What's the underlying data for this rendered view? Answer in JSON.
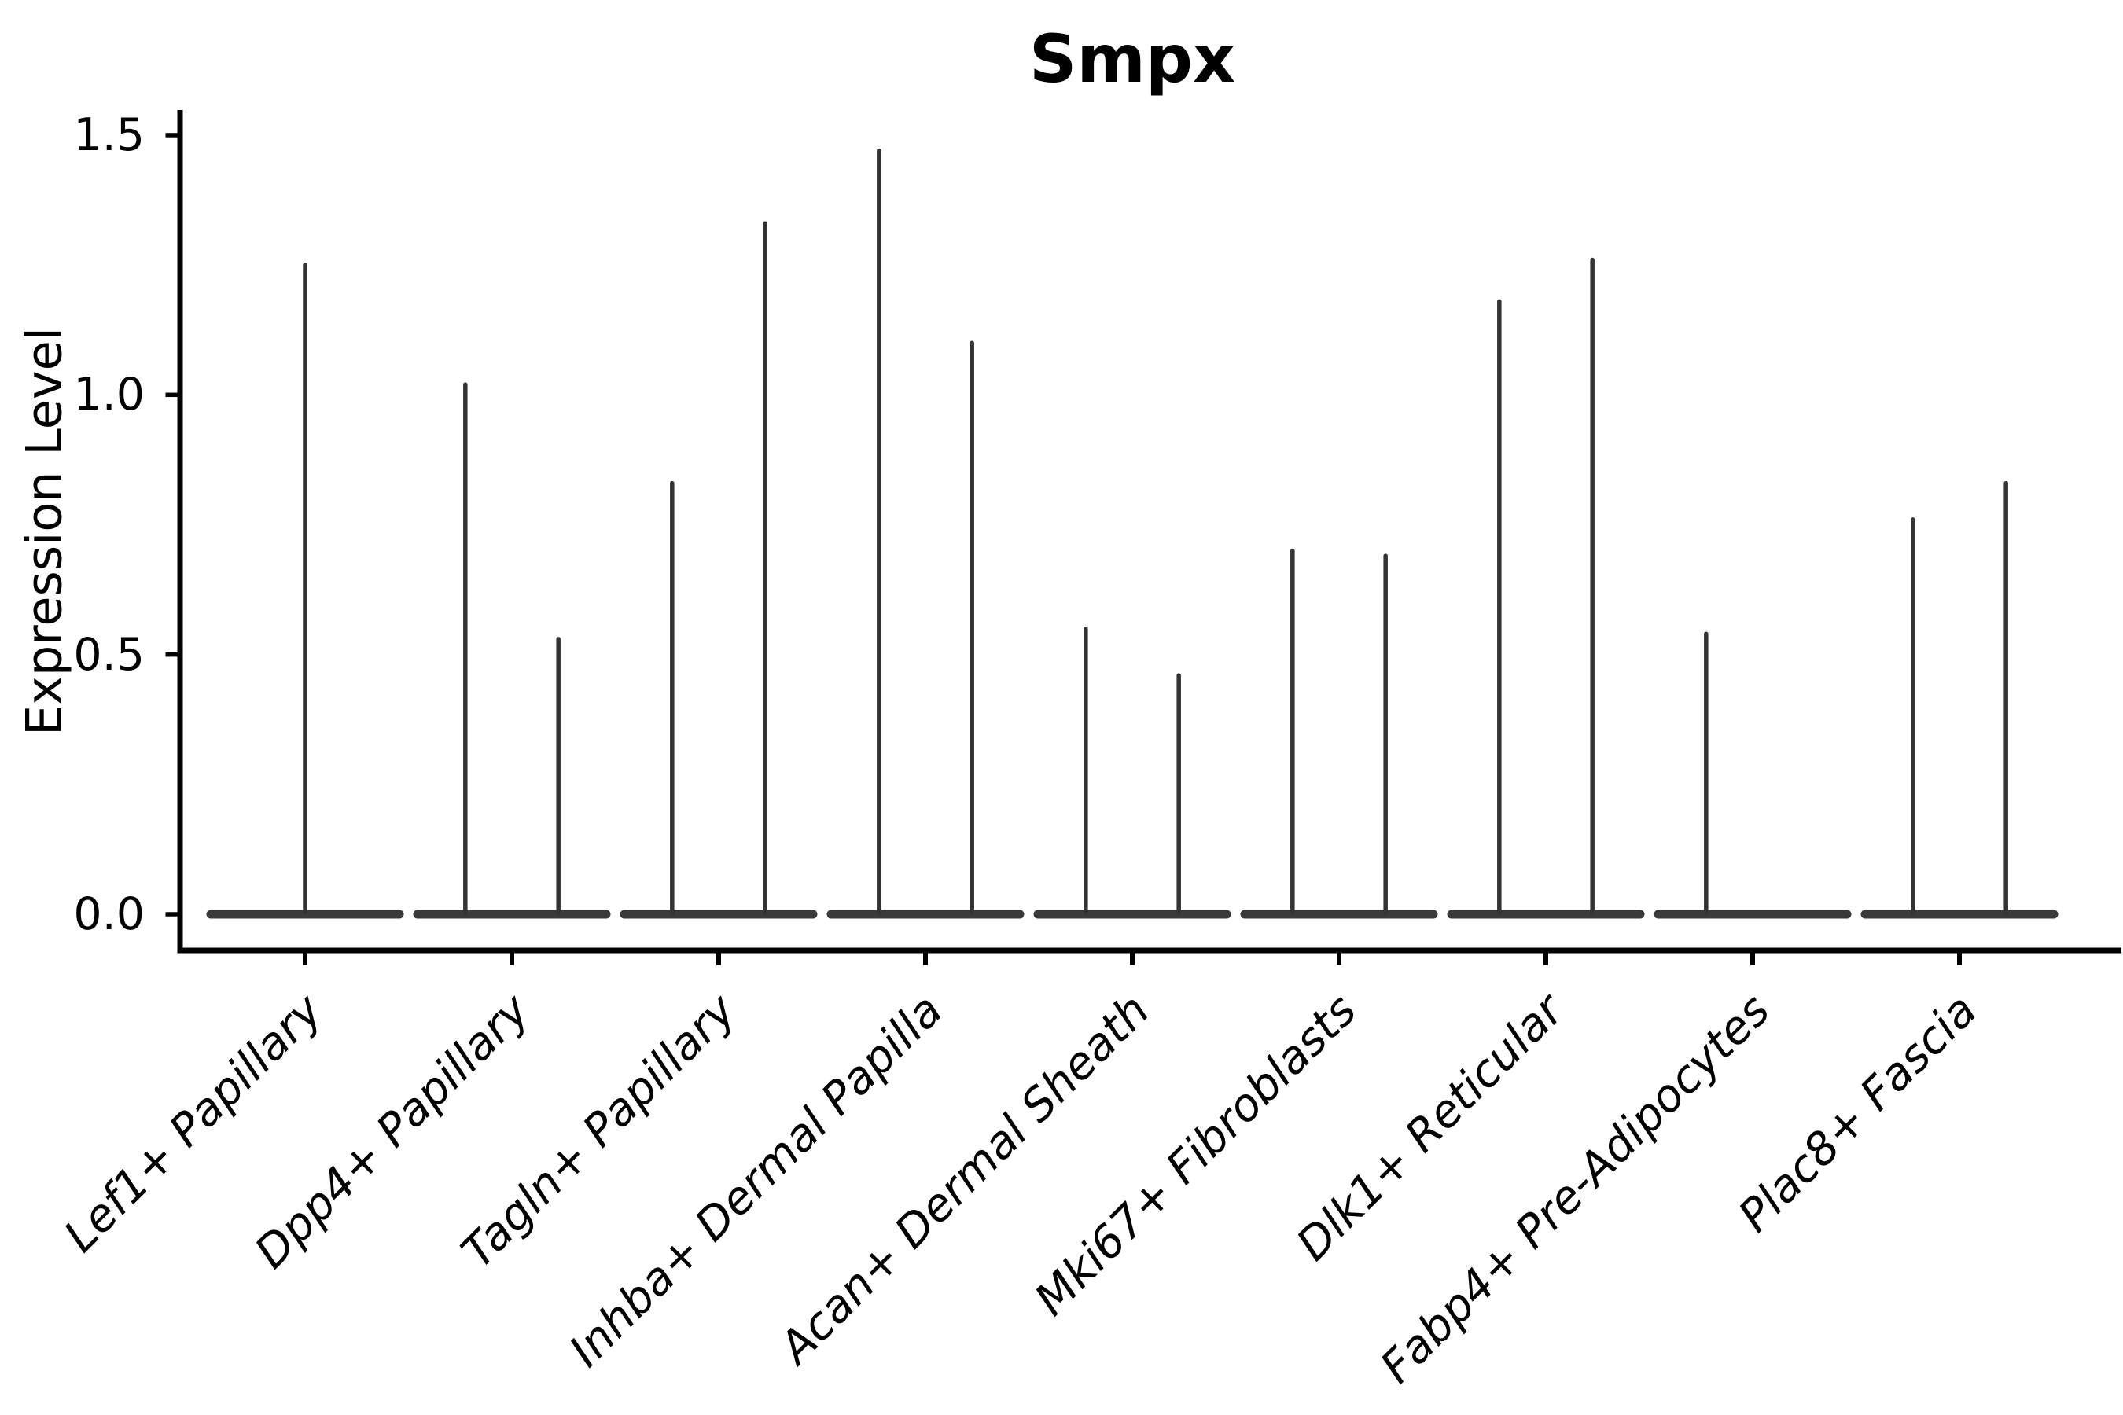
{
  "chart_data": {
    "type": "violin",
    "title": "Smpx",
    "xlabel": "",
    "ylabel": "Expression Level",
    "yticks": [
      {
        "label": "0.0",
        "value": 0.0
      },
      {
        "label": "0.5",
        "value": 0.5
      },
      {
        "label": "1.0",
        "value": 1.0
      },
      {
        "label": "1.5",
        "value": 1.5
      }
    ],
    "ylim": [
      -0.07,
      1.55
    ],
    "grid": false,
    "legend": null,
    "style_note": "needle violins: flat base at 0 with thin density spike(s)",
    "categories": [
      {
        "label": "Lef1+ Papillary",
        "spikes": [
          {
            "offset": 0.0,
            "value": 1.25
          }
        ]
      },
      {
        "label": "Dpp4+ Papillary",
        "spikes": [
          {
            "offset": -0.225,
            "value": 1.02
          },
          {
            "offset": 0.225,
            "value": 0.53
          }
        ]
      },
      {
        "label": "Tagln+ Papillary",
        "spikes": [
          {
            "offset": -0.225,
            "value": 0.83
          },
          {
            "offset": 0.225,
            "value": 1.33
          }
        ]
      },
      {
        "label": "Inhba+ Dermal Papilla",
        "spikes": [
          {
            "offset": -0.225,
            "value": 1.47
          },
          {
            "offset": 0.225,
            "value": 1.1
          }
        ]
      },
      {
        "label": "Acan+ Dermal Sheath",
        "spikes": [
          {
            "offset": -0.225,
            "value": 0.55
          },
          {
            "offset": 0.225,
            "value": 0.46
          }
        ]
      },
      {
        "label": "Mki67+ Fibroblasts",
        "spikes": [
          {
            "offset": -0.225,
            "value": 0.7
          },
          {
            "offset": 0.225,
            "value": 0.69
          }
        ]
      },
      {
        "label": "Dlk1+ Reticular",
        "spikes": [
          {
            "offset": -0.225,
            "value": 1.18
          },
          {
            "offset": 0.225,
            "value": 1.26
          }
        ]
      },
      {
        "label": "Fabp4+ Pre-Adipocytes",
        "spikes": [
          {
            "offset": -0.225,
            "value": 0.54
          }
        ]
      },
      {
        "label": "Plac8+ Fascia",
        "spikes": [
          {
            "offset": -0.225,
            "value": 0.76
          },
          {
            "offset": 0.225,
            "value": 0.83
          }
        ]
      }
    ],
    "colors": {
      "violin": "#3a3a3a",
      "spike": "#333333",
      "axis": "#000000",
      "text": "#000000",
      "background": "#ffffff"
    }
  }
}
